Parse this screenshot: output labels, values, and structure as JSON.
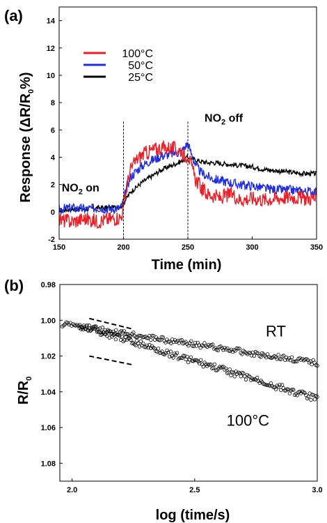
{
  "chart_data": [
    {
      "panel": "(a)",
      "type": "line",
      "xlabel": "Time (min)",
      "ylabel": {
        "pre": "Response  (ΔR/R",
        "sub": "0",
        "post": "%)"
      },
      "xlim": [
        150,
        350
      ],
      "ylim": [
        -2,
        15
      ],
      "xticks": [
        150,
        200,
        250,
        300,
        350
      ],
      "yticks": [
        -2,
        0,
        2,
        4,
        6,
        8,
        10,
        12,
        14
      ],
      "legend_position": "top-left",
      "grid": false,
      "annotations": [
        {
          "pre": "NO",
          "sub": "2",
          "post": " on",
          "x": 152,
          "y": 1.5
        },
        {
          "pre": "NO",
          "sub": "2",
          "post": " off",
          "x": 263,
          "y": 6.6
        }
      ],
      "markers": [
        {
          "x": 200,
          "style": "dashed"
        },
        {
          "x": 250,
          "style": "dashed"
        }
      ],
      "series": [
        {
          "name": "100°C",
          "color": "#ee1c25",
          "x": [
            150,
            160,
            170,
            180,
            190,
            198,
            200,
            203,
            205,
            210,
            215,
            220,
            225,
            230,
            235,
            240,
            245,
            248,
            250,
            253,
            256,
            260,
            265,
            270,
            275,
            280,
            285,
            290,
            300,
            310,
            320,
            330,
            340,
            350
          ],
          "y": [
            -0.6,
            -0.7,
            -0.5,
            -0.7,
            -0.5,
            -0.4,
            0.3,
            2.0,
            3.0,
            3.8,
            4.2,
            4.4,
            4.6,
            4.7,
            4.7,
            4.6,
            4.5,
            4.0,
            4.3,
            3.2,
            2.4,
            1.8,
            1.3,
            1.2,
            1.0,
            1.2,
            1.3,
            0.9,
            1.0,
            0.9,
            1.0,
            1.1,
            1.0,
            1.0
          ],
          "noise": 0.55
        },
        {
          "name": "50°C",
          "color": "#1f2ee6",
          "x": [
            150,
            160,
            170,
            180,
            190,
            198,
            200,
            203,
            206,
            210,
            215,
            220,
            225,
            230,
            235,
            240,
            245,
            248,
            250,
            253,
            256,
            260,
            265,
            270,
            280,
            290,
            300,
            310,
            320,
            330,
            340,
            350
          ],
          "y": [
            0.2,
            0.3,
            0.2,
            0.3,
            0.2,
            0.3,
            0.8,
            2.0,
            2.6,
            3.0,
            3.4,
            3.7,
            3.9,
            4.1,
            4.2,
            4.3,
            4.4,
            4.8,
            5.0,
            4.2,
            3.4,
            2.9,
            2.6,
            2.4,
            2.2,
            2.0,
            1.9,
            1.7,
            1.6,
            1.6,
            1.5,
            1.5
          ],
          "noise": 0.35
        },
        {
          "name": "25°C",
          "color": "#000000",
          "x": [
            150,
            160,
            170,
            180,
            190,
            198,
            200,
            203,
            206,
            210,
            215,
            220,
            225,
            230,
            235,
            240,
            245,
            248,
            250,
            253,
            256,
            260,
            265,
            270,
            280,
            290,
            300,
            310,
            320,
            330,
            340,
            350
          ],
          "y": [
            0.1,
            0.2,
            0.2,
            0.3,
            0.3,
            0.4,
            0.6,
            1.1,
            1.5,
            1.8,
            2.2,
            2.5,
            2.8,
            3.1,
            3.3,
            3.5,
            3.7,
            3.9,
            4.0,
            3.9,
            3.8,
            3.7,
            3.6,
            3.6,
            3.5,
            3.4,
            3.3,
            3.1,
            3.0,
            2.9,
            2.8,
            2.8
          ],
          "noise": 0.18
        }
      ]
    },
    {
      "panel": "(b)",
      "type": "scatter",
      "xlabel": "log (time/s)",
      "ylabel": {
        "pre": "R/R",
        "sub": "0",
        "post": ""
      },
      "xlim": [
        1.95,
        3.0
      ],
      "ylim": [
        0.98,
        1.09
      ],
      "y_inverted": true,
      "xticks": [
        2.0,
        2.5,
        3.0
      ],
      "yticks": [
        0.98,
        1.0,
        1.02,
        1.04,
        1.06,
        1.08
      ],
      "grid": false,
      "series": [
        {
          "name": "RT",
          "marker": "open-circle",
          "color": "#000000",
          "x_start": 1.96,
          "x_end": 3.0,
          "y_start": 1.002,
          "y_end": 1.024,
          "noise": 0.0015,
          "label_x": 2.79,
          "label_y": 1.009,
          "fit_line": {
            "x": [
              2.07,
              2.25
            ],
            "y": [
              0.999,
              1.005
            ]
          }
        },
        {
          "name": "100°C",
          "marker": "open-circle",
          "color": "#000000",
          "x_start": 2.03,
          "x_end": 3.0,
          "y_start": 1.003,
          "y_end": 1.044,
          "noise": 0.0018,
          "label_x": 2.63,
          "label_y": 1.059,
          "fit_line": {
            "x": [
              2.07,
              2.25
            ],
            "y": [
              1.02,
              1.025
            ]
          }
        }
      ]
    }
  ]
}
